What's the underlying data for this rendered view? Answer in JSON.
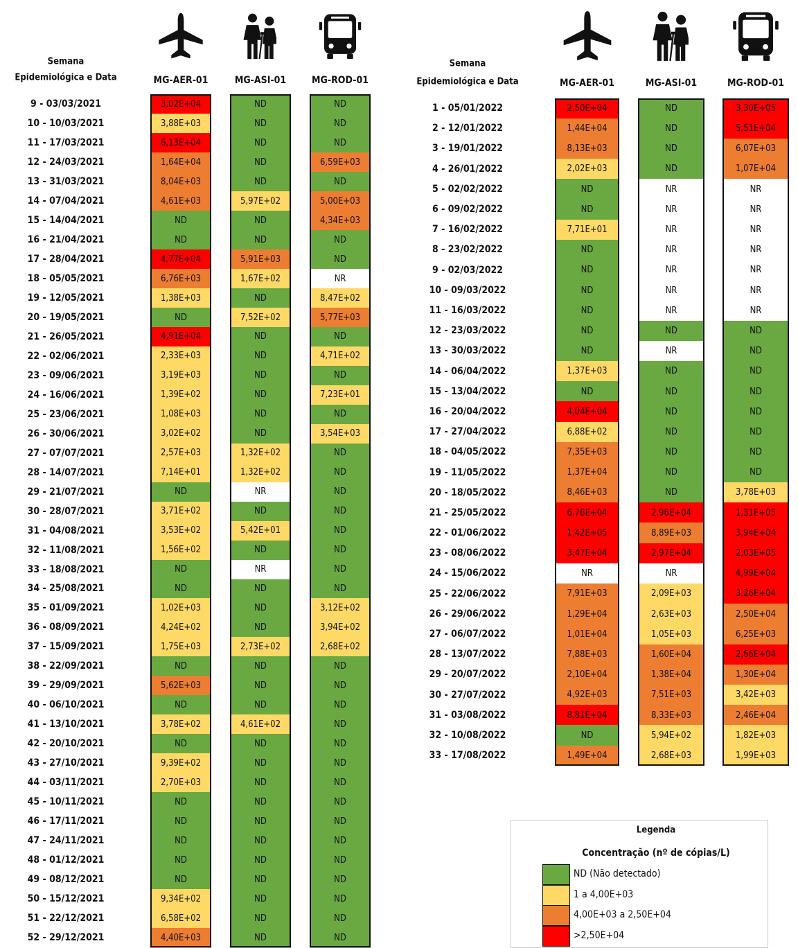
{
  "tables": [
    {
      "header_week": [
        "Semana",
        "Epidemiológica e Data"
      ],
      "columns": [
        "MG-AER-01",
        "MG-ASI-01",
        "MG-ROD-01"
      ],
      "rows": [
        {
          "week": "9 - 03/03/2021",
          "cells": [
            "3,02E+04",
            "ND",
            "ND"
          ],
          "levels": [
            3,
            0,
            0
          ]
        },
        {
          "week": "10 - 10/03/2021",
          "cells": [
            "3,88E+03",
            "ND",
            "ND"
          ],
          "levels": [
            1,
            0,
            0
          ]
        },
        {
          "week": "11 - 17/03/2021",
          "cells": [
            "6,13E+04",
            "ND",
            "ND"
          ],
          "levels": [
            3,
            0,
            0
          ]
        },
        {
          "week": "12 - 24/03/2021",
          "cells": [
            "1,64E+04",
            "ND",
            "6,59E+03"
          ],
          "levels": [
            2,
            0,
            2
          ]
        },
        {
          "week": "13 - 31/03/2021",
          "cells": [
            "8,04E+03",
            "ND",
            "ND"
          ],
          "levels": [
            2,
            0,
            0
          ]
        },
        {
          "week": "14 - 07/04/2021",
          "cells": [
            "4,61E+03",
            "5,97E+02",
            "5,00E+03"
          ],
          "levels": [
            2,
            1,
            2
          ]
        },
        {
          "week": "15 - 14/04/2021",
          "cells": [
            "ND",
            "ND",
            "4,34E+03"
          ],
          "levels": [
            0,
            0,
            2
          ]
        },
        {
          "week": "16 - 21/04/2021",
          "cells": [
            "ND",
            "ND",
            "ND"
          ],
          "levels": [
            0,
            0,
            0
          ]
        },
        {
          "week": "17 - 28/04/2021",
          "cells": [
            "4,77E+04",
            "5,91E+03",
            "ND"
          ],
          "levels": [
            3,
            2,
            0
          ]
        },
        {
          "week": "18 - 05/05/2021",
          "cells": [
            "6,76E+03",
            "1,67E+02",
            "NR"
          ],
          "levels": [
            2,
            1,
            null
          ]
        },
        {
          "week": "19 - 12/05/2021",
          "cells": [
            "1,38E+03",
            "ND",
            "8,47E+02"
          ],
          "levels": [
            1,
            0,
            1
          ]
        },
        {
          "week": "20 - 19/05/2021",
          "cells": [
            "ND",
            "7,52E+02",
            "5,77E+03"
          ],
          "levels": [
            0,
            1,
            2
          ]
        },
        {
          "week": "21 - 26/05/2021",
          "cells": [
            "4,91E+04",
            "ND",
            "ND"
          ],
          "levels": [
            3,
            0,
            0
          ]
        },
        {
          "week": "22 - 02/06/2021",
          "cells": [
            "2,33E+03",
            "ND",
            "4,71E+02"
          ],
          "levels": [
            1,
            0,
            1
          ]
        },
        {
          "week": "23 - 09/06/2021",
          "cells": [
            "3,19E+03",
            "ND",
            "ND"
          ],
          "levels": [
            1,
            0,
            0
          ]
        },
        {
          "week": "24 - 16/06/2021",
          "cells": [
            "1,39E+02",
            "ND",
            "7,23E+01"
          ],
          "levels": [
            1,
            0,
            1
          ]
        },
        {
          "week": "25 - 23/06/2021",
          "cells": [
            "1,08E+03",
            "ND",
            "ND"
          ],
          "levels": [
            1,
            0,
            0
          ]
        },
        {
          "week": "26 - 30/06/2021",
          "cells": [
            "3,02E+02",
            "ND",
            "3,54E+03"
          ],
          "levels": [
            1,
            0,
            1
          ]
        },
        {
          "week": "27 - 07/07/2021",
          "cells": [
            "2,57E+03",
            "1,32E+02",
            "ND"
          ],
          "levels": [
            1,
            1,
            0
          ]
        },
        {
          "week": "28 - 14/07/2021",
          "cells": [
            "7,14E+01",
            "1,32E+02",
            "ND"
          ],
          "levels": [
            1,
            1,
            0
          ]
        },
        {
          "week": "29 - 21/07/2021",
          "cells": [
            "ND",
            "NR",
            "ND"
          ],
          "levels": [
            0,
            null,
            0
          ]
        },
        {
          "week": "30 - 28/07/2021",
          "cells": [
            "3,71E+02",
            "ND",
            "ND"
          ],
          "levels": [
            1,
            0,
            0
          ]
        },
        {
          "week": "31 - 04/08/2021",
          "cells": [
            "3,53E+02",
            "5,42E+01",
            "ND"
          ],
          "levels": [
            1,
            1,
            0
          ]
        },
        {
          "week": "32 - 11/08/2021",
          "cells": [
            "1,56E+02",
            "ND",
            "ND"
          ],
          "levels": [
            1,
            0,
            0
          ]
        },
        {
          "week": "33 - 18/08/2021",
          "cells": [
            "ND",
            "NR",
            "ND"
          ],
          "levels": [
            0,
            null,
            0
          ]
        },
        {
          "week": "34 - 25/08/2021",
          "cells": [
            "ND",
            "ND",
            "ND"
          ],
          "levels": [
            0,
            0,
            0
          ]
        },
        {
          "week": "35 - 01/09/2021",
          "cells": [
            "1,02E+03",
            "ND",
            "3,12E+02"
          ],
          "levels": [
            1,
            0,
            1
          ]
        },
        {
          "week": "36 - 08/09/2021",
          "cells": [
            "4,24E+02",
            "ND",
            "3,94E+02"
          ],
          "levels": [
            1,
            0,
            1
          ]
        },
        {
          "week": "37 - 15/09/2021",
          "cells": [
            "1,75E+03",
            "2,73E+02",
            "2,68E+02"
          ],
          "levels": [
            1,
            1,
            1
          ]
        },
        {
          "week": "38 - 22/09/2021",
          "cells": [
            "ND",
            "ND",
            "ND"
          ],
          "levels": [
            0,
            0,
            0
          ]
        },
        {
          "week": "39 - 29/09/2021",
          "cells": [
            "5,62E+03",
            "ND",
            "ND"
          ],
          "levels": [
            2,
            0,
            0
          ]
        },
        {
          "week": "40 - 06/10/2021",
          "cells": [
            "ND",
            "ND",
            "ND"
          ],
          "levels": [
            0,
            0,
            0
          ]
        },
        {
          "week": "41 - 13/10/2021",
          "cells": [
            "3,78E+02",
            "4,61E+02",
            "ND"
          ],
          "levels": [
            1,
            1,
            0
          ]
        },
        {
          "week": "42 - 20/10/2021",
          "cells": [
            "ND",
            "ND",
            "ND"
          ],
          "levels": [
            0,
            0,
            0
          ]
        },
        {
          "week": "43 - 27/10/2021",
          "cells": [
            "9,39E+02",
            "ND",
            "ND"
          ],
          "levels": [
            1,
            0,
            0
          ]
        },
        {
          "week": "44 - 03/11/2021",
          "cells": [
            "2,70E+03",
            "ND",
            "ND"
          ],
          "levels": [
            1,
            0,
            0
          ]
        },
        {
          "week": "45 - 10/11/2021",
          "cells": [
            "ND",
            "ND",
            "ND"
          ],
          "levels": [
            0,
            0,
            0
          ]
        },
        {
          "week": "46 - 17/11/2021",
          "cells": [
            "ND",
            "ND",
            "ND"
          ],
          "levels": [
            0,
            0,
            0
          ]
        },
        {
          "week": "47 - 24/11/2021",
          "cells": [
            "ND",
            "ND",
            "ND"
          ],
          "levels": [
            0,
            0,
            0
          ]
        },
        {
          "week": "48 - 01/12/2021",
          "cells": [
            "ND",
            "ND",
            "ND"
          ],
          "levels": [
            0,
            0,
            0
          ]
        },
        {
          "week": "49 - 08/12/2021",
          "cells": [
            "ND",
            "ND",
            "ND"
          ],
          "levels": [
            0,
            0,
            0
          ]
        },
        {
          "week": "50 - 15/12/2021",
          "cells": [
            "9,34E+02",
            "ND",
            "ND"
          ],
          "levels": [
            1,
            0,
            0
          ]
        },
        {
          "week": "51 - 22/12/2021",
          "cells": [
            "6,58E+02",
            "ND",
            "ND"
          ],
          "levels": [
            1,
            0,
            0
          ]
        },
        {
          "week": "52 - 29/12/2021",
          "cells": [
            "4,40E+03",
            "ND",
            "ND"
          ],
          "levels": [
            2,
            0,
            0
          ]
        }
      ]
    },
    {
      "header_week": [
        "Semana",
        "Epidemiológica e Data"
      ],
      "columns": [
        "MG-AER-01",
        "MG-ASI-01",
        "MG-ROD-01"
      ],
      "rows": [
        {
          "week": "1 - 05/01/2022",
          "cells": [
            "2,50E+04",
            "ND",
            "3,30E+05"
          ],
          "levels": [
            3,
            0,
            3
          ]
        },
        {
          "week": "2 - 12/01/2022",
          "cells": [
            "1,44E+04",
            "ND",
            "5,51E+04"
          ],
          "levels": [
            2,
            0,
            3
          ]
        },
        {
          "week": "3 - 19/01/2022",
          "cells": [
            "8,13E+03",
            "ND",
            "6,07E+03"
          ],
          "levels": [
            2,
            0,
            2
          ]
        },
        {
          "week": "4 - 26/01/2022",
          "cells": [
            "2,02E+03",
            "ND",
            "1,07E+04"
          ],
          "levels": [
            1,
            0,
            2
          ]
        },
        {
          "week": "5 - 02/02/2022",
          "cells": [
            "ND",
            "NR",
            "NR"
          ],
          "levels": [
            0,
            null,
            null
          ]
        },
        {
          "week": "6 - 09/02/2022",
          "cells": [
            "ND",
            "NR",
            "NR"
          ],
          "levels": [
            0,
            null,
            null
          ]
        },
        {
          "week": "7 - 16/02/2022",
          "cells": [
            "7,71E+01",
            "NR",
            "NR"
          ],
          "levels": [
            1,
            null,
            null
          ]
        },
        {
          "week": "8 - 23/02/2022",
          "cells": [
            "ND",
            "NR",
            "NR"
          ],
          "levels": [
            0,
            null,
            null
          ]
        },
        {
          "week": "9 - 02/03/2022",
          "cells": [
            "ND",
            "NR",
            "NR"
          ],
          "levels": [
            0,
            null,
            null
          ]
        },
        {
          "week": "10 - 09/03/2022",
          "cells": [
            "ND",
            "NR",
            "NR"
          ],
          "levels": [
            0,
            null,
            null
          ]
        },
        {
          "week": "11 - 16/03/2022",
          "cells": [
            "ND",
            "NR",
            "NR"
          ],
          "levels": [
            0,
            null,
            null
          ]
        },
        {
          "week": "12 - 23/03/2022",
          "cells": [
            "ND",
            "ND",
            "ND"
          ],
          "levels": [
            0,
            0,
            0
          ]
        },
        {
          "week": "13 - 30/03/2022",
          "cells": [
            "ND",
            "NR",
            "ND"
          ],
          "levels": [
            0,
            null,
            0
          ]
        },
        {
          "week": "14 - 06/04/2022",
          "cells": [
            "1,37E+03",
            "ND",
            "ND"
          ],
          "levels": [
            1,
            0,
            0
          ]
        },
        {
          "week": "15 - 13/04/2022",
          "cells": [
            "ND",
            "ND",
            "ND"
          ],
          "levels": [
            0,
            0,
            0
          ]
        },
        {
          "week": "16 - 20/04/2022",
          "cells": [
            "4,04E+04",
            "ND",
            "ND"
          ],
          "levels": [
            3,
            0,
            0
          ]
        },
        {
          "week": "17 - 27/04/2022",
          "cells": [
            "6,88E+02",
            "ND",
            "ND"
          ],
          "levels": [
            1,
            0,
            0
          ]
        },
        {
          "week": "18 - 04/05/2022",
          "cells": [
            "7,35E+03",
            "ND",
            "ND"
          ],
          "levels": [
            2,
            0,
            0
          ]
        },
        {
          "week": "19 - 11/05/2022",
          "cells": [
            "1,37E+04",
            "ND",
            "ND"
          ],
          "levels": [
            2,
            0,
            0
          ]
        },
        {
          "week": "20 - 18/05/2022",
          "cells": [
            "8,46E+03",
            "ND",
            "3,78E+03"
          ],
          "levels": [
            2,
            0,
            1
          ]
        },
        {
          "week": "21 - 25/05/2022",
          "cells": [
            "6,76E+04",
            "2,96E+04",
            "1,31E+05"
          ],
          "levels": [
            3,
            3,
            3
          ]
        },
        {
          "week": "22 - 01/06/2022",
          "cells": [
            "1,42E+05",
            "8,89E+03",
            "3,94E+04"
          ],
          "levels": [
            3,
            2,
            3
          ]
        },
        {
          "week": "23 - 08/06/2022",
          "cells": [
            "3,47E+04",
            "2,97E+04",
            "2,03E+05"
          ],
          "levels": [
            3,
            3,
            3
          ]
        },
        {
          "week": "24 - 15/06/2022",
          "cells": [
            "NR",
            "NR",
            "4,99E+04"
          ],
          "levels": [
            null,
            null,
            3
          ]
        },
        {
          "week": "25 - 22/06/2022",
          "cells": [
            "7,91E+03",
            "2,09E+03",
            "3,26E+04"
          ],
          "levels": [
            2,
            1,
            3
          ]
        },
        {
          "week": "26 - 29/06/2022",
          "cells": [
            "1,29E+04",
            "2,63E+03",
            "2,50E+04"
          ],
          "levels": [
            2,
            1,
            2
          ]
        },
        {
          "week": "27 - 06/07/2022",
          "cells": [
            "1,01E+04",
            "1,05E+03",
            "6,25E+03"
          ],
          "levels": [
            2,
            1,
            2
          ]
        },
        {
          "week": "28 - 13/07/2022",
          "cells": [
            "7,88E+03",
            "1,60E+04",
            "2,66E+04"
          ],
          "levels": [
            2,
            2,
            3
          ]
        },
        {
          "week": "29 - 20/07/2022",
          "cells": [
            "2,10E+04",
            "1,38E+04",
            "1,30E+04"
          ],
          "levels": [
            2,
            2,
            2
          ]
        },
        {
          "week": "30 - 27/07/2022",
          "cells": [
            "4,92E+03",
            "7,51E+03",
            "3,42E+03"
          ],
          "levels": [
            2,
            2,
            1
          ]
        },
        {
          "week": "31 - 03/08/2022",
          "cells": [
            "8,81E+04",
            "8,33E+03",
            "2,46E+04"
          ],
          "levels": [
            3,
            2,
            2
          ]
        },
        {
          "week": "32 - 10/08/2022",
          "cells": [
            "ND",
            "5,94E+02",
            "1,82E+03"
          ],
          "levels": [
            0,
            1,
            1
          ]
        },
        {
          "week": "33 - 17/08/2022",
          "cells": [
            "1,49E+04",
            "2,68E+03",
            "1,99E+03"
          ],
          "levels": [
            2,
            1,
            1
          ]
        }
      ]
    }
  ],
  "legend": {
    "title": "Legenda",
    "subtitle": "Concentração (nº de cópias/L)",
    "items": [
      {
        "label": "ND (Não detectado)",
        "color": "#6aa842"
      },
      {
        "label": "1 a 4,00E+03",
        "color": "#ffd966"
      },
      {
        "label": "4,00E+03 a 2,50E+04",
        "color": "#ed7d31"
      },
      {
        "label": ">2,50E+04",
        "color": "#ff0000"
      }
    ]
  }
}
